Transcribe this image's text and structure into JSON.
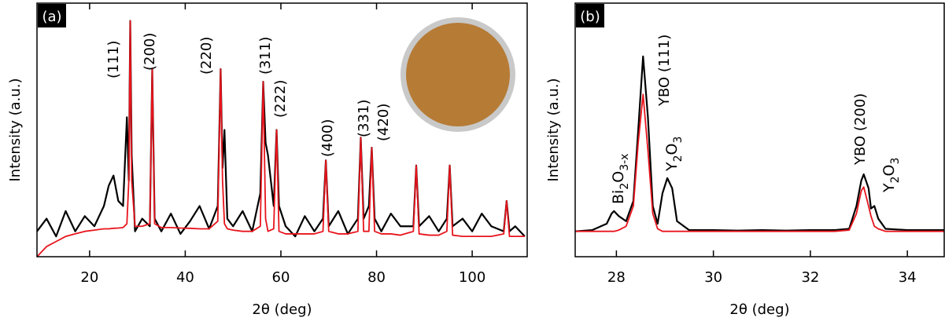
{
  "chart_data": [
    {
      "type": "line",
      "panel_label": "(a)",
      "xlabel": "2θ (deg)",
      "ylabel": "Intensity (a.u.)",
      "xlim": [
        9,
        111.5
      ],
      "ylim": [
        0,
        1
      ],
      "xticks": [
        20,
        40,
        60,
        80,
        100
      ],
      "x": [
        9,
        11,
        13,
        15,
        17,
        19,
        21,
        23,
        24,
        25,
        26,
        27,
        27.8,
        28.2,
        28.5,
        28.8,
        29.5,
        31,
        32.6,
        33.1,
        33.6,
        35,
        37,
        39,
        41,
        43,
        45,
        46.8,
        47.4,
        47.8,
        48.2,
        48.8,
        50,
        52,
        54,
        55.7,
        56.3,
        56.8,
        57.3,
        58.5,
        59.1,
        59.6,
        61,
        63,
        65,
        67,
        68.8,
        69.4,
        70,
        72,
        74,
        76.1,
        76.7,
        77.3,
        78.4,
        79,
        79.6,
        81,
        83,
        85,
        87.7,
        88.3,
        88.9,
        91,
        93,
        94.7,
        95.3,
        95.9,
        98,
        100,
        102,
        104,
        106.6,
        107.2,
        107.8,
        109,
        111
      ],
      "series": [
        {
          "color": "#000000",
          "values": [
            0.1,
            0.15,
            0.08,
            0.18,
            0.1,
            0.16,
            0.12,
            0.2,
            0.28,
            0.32,
            0.22,
            0.2,
            0.55,
            0.3,
            0.93,
            0.4,
            0.1,
            0.15,
            0.12,
            0.74,
            0.15,
            0.1,
            0.17,
            0.09,
            0.14,
            0.2,
            0.11,
            0.2,
            0.74,
            0.35,
            0.5,
            0.15,
            0.12,
            0.18,
            0.1,
            0.25,
            0.69,
            0.45,
            0.4,
            0.2,
            0.5,
            0.2,
            0.12,
            0.08,
            0.16,
            0.1,
            0.15,
            0.38,
            0.12,
            0.18,
            0.09,
            0.15,
            0.47,
            0.15,
            0.2,
            0.43,
            0.15,
            0.1,
            0.17,
            0.12,
            0.12,
            0.36,
            0.12,
            0.16,
            0.1,
            0.15,
            0.36,
            0.12,
            0.15,
            0.1,
            0.17,
            0.12,
            0.1,
            0.22,
            0.1,
            0.12,
            0.08
          ]
        },
        {
          "color": "#e8141c",
          "values": [
            0,
            0.04,
            0.06,
            0.08,
            0.09,
            0.1,
            0.105,
            0.11,
            0.11,
            0.112,
            0.113,
            0.115,
            0.13,
            0.3,
            0.93,
            0.3,
            0.12,
            0.12,
            0.13,
            0.74,
            0.13,
            0.115,
            0.115,
            0.113,
            0.112,
            0.11,
            0.11,
            0.14,
            0.74,
            0.3,
            0.13,
            0.11,
            0.105,
            0.1,
            0.1,
            0.12,
            0.69,
            0.15,
            0.1,
            0.11,
            0.5,
            0.1,
            0.09,
            0.09,
            0.09,
            0.09,
            0.1,
            0.38,
            0.1,
            0.09,
            0.09,
            0.1,
            0.47,
            0.1,
            0.1,
            0.43,
            0.1,
            0.09,
            0.09,
            0.085,
            0.1,
            0.36,
            0.09,
            0.085,
            0.085,
            0.1,
            0.36,
            0.085,
            0.08,
            0.08,
            0.08,
            0.08,
            0.09,
            0.22,
            0.08,
            0.08,
            0.08
          ]
        }
      ],
      "annotations": [
        {
          "text": "(111)"
        },
        {
          "text": "(200)"
        },
        {
          "text": "(220)"
        },
        {
          "text": "(311)"
        },
        {
          "text": "(222)"
        },
        {
          "text": "(400)"
        },
        {
          "text": "(331)"
        },
        {
          "text": "(420)"
        }
      ]
    },
    {
      "type": "line",
      "panel_label": "(b)",
      "xlabel": "2θ (deg)",
      "ylabel": "Intensity (a.u.)",
      "xlim": [
        27.15,
        34.76
      ],
      "ylim": [
        0,
        1
      ],
      "xticks": [
        28,
        30,
        32,
        34
      ],
      "x": [
        27.15,
        27.5,
        27.8,
        27.9,
        27.95,
        28.05,
        28.2,
        28.35,
        28.45,
        28.55,
        28.65,
        28.75,
        28.85,
        28.95,
        29.05,
        29.15,
        29.25,
        29.5,
        30,
        30.5,
        31,
        31.5,
        32,
        32.5,
        32.8,
        32.95,
        33.05,
        33.1,
        33.2,
        33.25,
        33.32,
        33.4,
        33.55,
        34,
        34.76
      ],
      "series": [
        {
          "color": "#000000",
          "values": [
            0.1,
            0.105,
            0.13,
            0.17,
            0.18,
            0.16,
            0.14,
            0.22,
            0.5,
            0.79,
            0.55,
            0.2,
            0.13,
            0.25,
            0.31,
            0.27,
            0.14,
            0.105,
            0.105,
            0.103,
            0.105,
            0.103,
            0.105,
            0.105,
            0.11,
            0.2,
            0.3,
            0.325,
            0.27,
            0.19,
            0.2,
            0.15,
            0.11,
            0.105,
            0.105
          ]
        },
        {
          "color": "#e8141c",
          "values": [
            0.1,
            0.1,
            0.1,
            0.1,
            0.1,
            0.105,
            0.12,
            0.2,
            0.45,
            0.64,
            0.42,
            0.17,
            0.11,
            0.1,
            0.1,
            0.1,
            0.1,
            0.1,
            0.1,
            0.1,
            0.1,
            0.1,
            0.1,
            0.1,
            0.105,
            0.17,
            0.26,
            0.275,
            0.2,
            0.16,
            0.12,
            0.11,
            0.1,
            0.1,
            0.1
          ]
        }
      ],
      "annotations": [
        {
          "parts": [
            "Bi",
            "2",
            "O",
            "3-x"
          ]
        },
        {
          "text": "YBO (111)"
        },
        {
          "parts": [
            "Y",
            "2",
            "O",
            "3"
          ]
        },
        {
          "text": "YBO (200)"
        },
        {
          "parts": [
            "Y",
            "2",
            "O",
            "3"
          ]
        }
      ]
    }
  ]
}
